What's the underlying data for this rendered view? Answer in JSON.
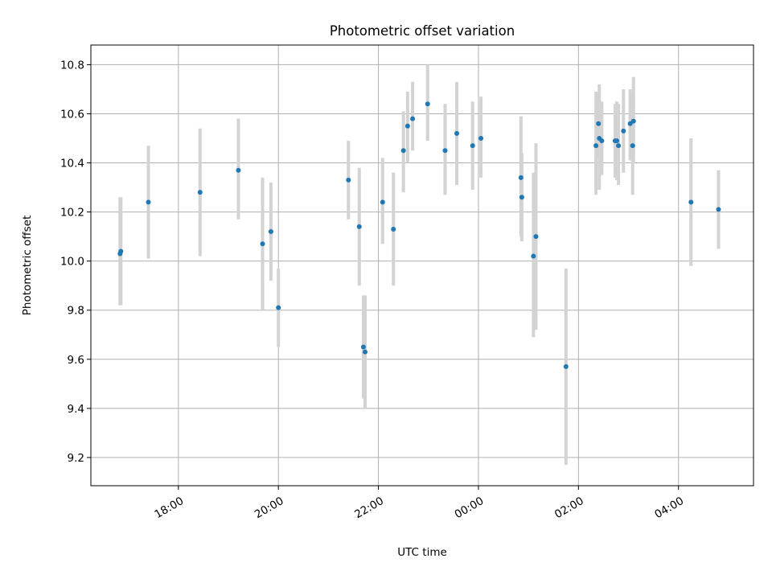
{
  "chart_data": {
    "type": "scatter",
    "title": "Photometric offset variation",
    "xlabel": "UTC time",
    "ylabel": "Photometric offset",
    "xlim": [
      "16:15",
      "05:30"
    ],
    "ylim": [
      9.085,
      10.88
    ],
    "x_ticks": [
      "18:00",
      "20:00",
      "22:00",
      "00:00",
      "02:00",
      "04:00"
    ],
    "y_ticks": [
      "9.2",
      "9.4",
      "9.6",
      "9.8",
      "10.0",
      "10.2",
      "10.4",
      "10.6",
      "10.8"
    ],
    "grid": true,
    "marker_color": "#1f77b4",
    "errorbar_color": "#d3d3d3",
    "points": [
      {
        "x": "16:50",
        "y": 10.03,
        "lo": 9.82,
        "hi": 10.26
      },
      {
        "x": "16:51",
        "y": 10.04,
        "lo": 9.82,
        "hi": 10.26
      },
      {
        "x": "17:24",
        "y": 10.24,
        "lo": 10.01,
        "hi": 10.47
      },
      {
        "x": "18:26",
        "y": 10.28,
        "lo": 10.02,
        "hi": 10.54
      },
      {
        "x": "19:12",
        "y": 10.37,
        "lo": 10.17,
        "hi": 10.58
      },
      {
        "x": "19:41",
        "y": 10.07,
        "lo": 9.8,
        "hi": 10.34
      },
      {
        "x": "19:51",
        "y": 10.12,
        "lo": 9.92,
        "hi": 10.32
      },
      {
        "x": "20:00",
        "y": 9.81,
        "lo": 9.65,
        "hi": 9.97
      },
      {
        "x": "21:24",
        "y": 10.33,
        "lo": 10.17,
        "hi": 10.49
      },
      {
        "x": "21:37",
        "y": 10.14,
        "lo": 9.9,
        "hi": 10.38
      },
      {
        "x": "21:42",
        "y": 9.65,
        "lo": 9.44,
        "hi": 9.86
      },
      {
        "x": "21:44",
        "y": 9.63,
        "lo": 9.4,
        "hi": 9.86
      },
      {
        "x": "22:05",
        "y": 10.24,
        "lo": 10.07,
        "hi": 10.42
      },
      {
        "x": "22:18",
        "y": 10.13,
        "lo": 9.9,
        "hi": 10.36
      },
      {
        "x": "22:30",
        "y": 10.45,
        "lo": 10.28,
        "hi": 10.61
      },
      {
        "x": "22:35",
        "y": 10.55,
        "lo": 10.4,
        "hi": 10.69
      },
      {
        "x": "22:41",
        "y": 10.58,
        "lo": 10.45,
        "hi": 10.73
      },
      {
        "x": "22:59",
        "y": 10.64,
        "lo": 10.49,
        "hi": 10.8
      },
      {
        "x": "23:20",
        "y": 10.45,
        "lo": 10.27,
        "hi": 10.64
      },
      {
        "x": "23:34",
        "y": 10.52,
        "lo": 10.31,
        "hi": 10.73
      },
      {
        "x": "23:53",
        "y": 10.47,
        "lo": 10.29,
        "hi": 10.65
      },
      {
        "x": "00:03",
        "y": 10.5,
        "lo": 10.34,
        "hi": 10.67
      },
      {
        "x": "00:51",
        "y": 10.34,
        "lo": 10.1,
        "hi": 10.59
      },
      {
        "x": "00:52",
        "y": 10.26,
        "lo": 10.08,
        "hi": 10.44
      },
      {
        "x": "01:06",
        "y": 10.02,
        "lo": 9.69,
        "hi": 10.36
      },
      {
        "x": "01:09",
        "y": 10.1,
        "lo": 9.72,
        "hi": 10.48
      },
      {
        "x": "01:45",
        "y": 9.57,
        "lo": 9.17,
        "hi": 9.97
      },
      {
        "x": "02:21",
        "y": 10.47,
        "lo": 10.27,
        "hi": 10.69
      },
      {
        "x": "02:24",
        "y": 10.56,
        "lo": 10.42,
        "hi": 10.69
      },
      {
        "x": "02:25",
        "y": 10.5,
        "lo": 10.29,
        "hi": 10.72
      },
      {
        "x": "02:28",
        "y": 10.49,
        "lo": 10.35,
        "hi": 10.65
      },
      {
        "x": "02:44",
        "y": 10.49,
        "lo": 10.34,
        "hi": 10.64
      },
      {
        "x": "02:46",
        "y": 10.49,
        "lo": 10.33,
        "hi": 10.65
      },
      {
        "x": "02:48",
        "y": 10.47,
        "lo": 10.31,
        "hi": 10.64
      },
      {
        "x": "02:54",
        "y": 10.53,
        "lo": 10.36,
        "hi": 10.7
      },
      {
        "x": "03:02",
        "y": 10.56,
        "lo": 10.41,
        "hi": 10.7
      },
      {
        "x": "03:05",
        "y": 10.47,
        "lo": 10.27,
        "hi": 10.68
      },
      {
        "x": "03:06",
        "y": 10.57,
        "lo": 10.4,
        "hi": 10.75
      },
      {
        "x": "04:15",
        "y": 10.24,
        "lo": 9.98,
        "hi": 10.5
      },
      {
        "x": "04:48",
        "y": 10.21,
        "lo": 10.05,
        "hi": 10.37
      }
    ]
  }
}
